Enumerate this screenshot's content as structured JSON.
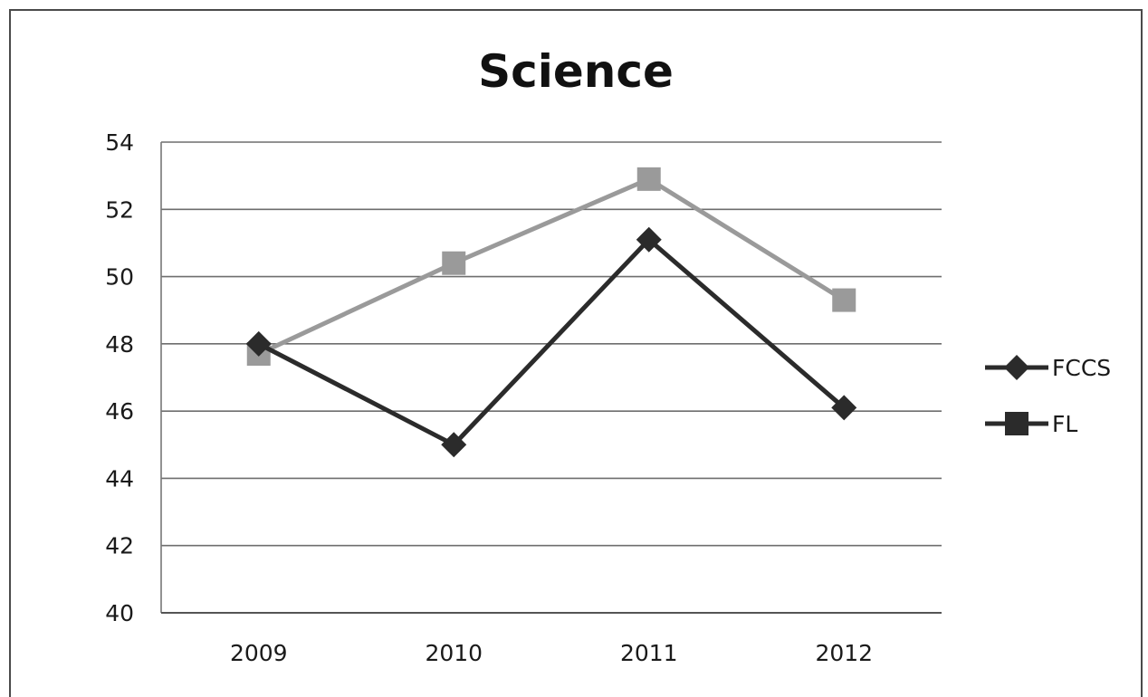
{
  "chart_data": {
    "type": "line",
    "title": "Science",
    "xlabel": "",
    "ylabel": "",
    "categories": [
      "2009",
      "2010",
      "2011",
      "2012"
    ],
    "ylim": [
      40,
      54
    ],
    "yticks": [
      40,
      42,
      44,
      46,
      48,
      50,
      52,
      54
    ],
    "grid": true,
    "legend_position": "right",
    "series": [
      {
        "name": "FCCS",
        "values": [
          48.0,
          45.0,
          51.1,
          46.1
        ],
        "color": "#2b2b2b",
        "marker": "diamond"
      },
      {
        "name": "FL",
        "values": [
          47.7,
          50.4,
          52.9,
          49.3
        ],
        "color": "#9a9a9a",
        "marker": "square"
      }
    ]
  }
}
